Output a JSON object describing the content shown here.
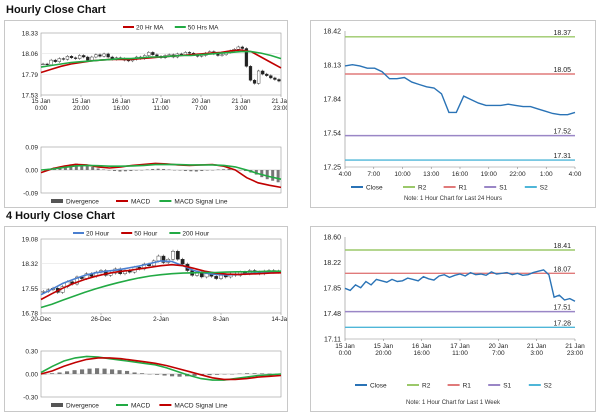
{
  "sections": [
    {
      "title": "Hourly Close Chart",
      "price": {
        "type": "line",
        "ylim": [
          17.53,
          18.33
        ],
        "yticks": [
          "18.33",
          "18.06",
          "17.79",
          "17.53"
        ],
        "xticks": [
          [
            "15 Jan",
            "0:00"
          ],
          [
            "15 Jan",
            "20:00"
          ],
          [
            "16 Jan",
            "16:00"
          ],
          [
            "17 Jan",
            "11:00"
          ],
          [
            "20 Jan",
            "7:00"
          ],
          [
            "21 Jan",
            "3:00"
          ],
          [
            "21 Jan",
            "23:00"
          ]
        ],
        "legend": [
          {
            "name": "20 Hr MA",
            "color": "#c00000"
          },
          {
            "name": "50 Hrs MA",
            "color": "#22aa44"
          }
        ],
        "candles": [
          17.93,
          17.92,
          17.98,
          17.96,
          18.0,
          17.99,
          18.03,
          18.01,
          18.0,
          18.04,
          18.02,
          17.98,
          18.02,
          18.05,
          18.03,
          18.06,
          18.02,
          17.99,
          18.01,
          18.0,
          17.98,
          17.97,
          17.99,
          18.02,
          18.0,
          18.04,
          18.08,
          18.05,
          18.03,
          18.01,
          18.04,
          18.05,
          18.02,
          18.06,
          18.05,
          18.08,
          18.07,
          18.05,
          18.03,
          18.04,
          18.07,
          18.09,
          18.06,
          18.04,
          18.05,
          18.08,
          18.1,
          18.12,
          18.15,
          18.13,
          17.9,
          17.72,
          17.68,
          17.84,
          17.8,
          17.78,
          17.75,
          17.73,
          17.71
        ],
        "series": [
          {
            "name": "20 Hr MA",
            "color": "#c00000",
            "values": [
              17.82,
              17.86,
              17.9,
              17.93,
              17.95,
              17.97,
              17.98,
              17.99,
              17.99,
              17.99,
              18.0,
              18.01,
              18.02,
              18.03,
              18.04,
              18.05,
              18.06,
              18.07,
              18.08,
              18.1,
              18.11,
              18.09,
              18.02,
              17.95,
              17.88
            ]
          },
          {
            "name": "50 Hrs MA",
            "color": "#22aa44",
            "values": [
              17.89,
              17.91,
              17.93,
              17.95,
              17.96,
              17.97,
              17.98,
              17.99,
              18.0,
              18.0,
              18.01,
              18.02,
              18.02,
              18.03,
              18.04,
              18.04,
              18.05,
              18.06,
              18.07,
              18.08,
              18.09,
              18.09,
              18.07,
              18.04,
              18.0
            ]
          }
        ]
      },
      "macd": {
        "type": "line",
        "ylim": [
          -0.09,
          0.09
        ],
        "yticks": [
          "0.09",
          "0.00",
          "-0.09"
        ],
        "legend": [
          {
            "name": "Divergence",
            "color": "#555555"
          },
          {
            "name": "MACD",
            "color": "#c00000"
          },
          {
            "name": "MACD Signal Line",
            "color": "#22aa44"
          }
        ],
        "histogram": [
          0.0,
          0.005,
          0.01,
          0.014,
          0.018,
          0.022,
          0.025,
          0.022,
          0.018,
          0.012,
          0.006,
          0.002,
          -0.002,
          -0.004,
          -0.006,
          -0.005,
          -0.004,
          -0.002,
          0.0,
          0.002,
          0.004,
          0.005,
          0.004,
          0.002,
          0.0,
          -0.002,
          -0.004,
          -0.005,
          -0.006,
          -0.004,
          -0.002,
          0.0,
          0.002,
          0.003,
          0.004,
          0.002,
          0.0,
          -0.004,
          -0.01,
          -0.018,
          -0.028,
          -0.036,
          -0.042,
          -0.048
        ],
        "series": [
          {
            "name": "MACD",
            "color": "#c00000",
            "values": [
              -0.01,
              0.005,
              0.015,
              0.022,
              0.02,
              0.012,
              0.008,
              0.012,
              0.018,
              0.022,
              0.026,
              0.024,
              0.02,
              0.018,
              0.02,
              0.021,
              0.015,
              0.0,
              -0.03,
              -0.05,
              -0.06,
              -0.068
            ]
          },
          {
            "name": "MACD Signal Line",
            "color": "#22aa44",
            "values": [
              0.0,
              0.004,
              0.01,
              0.016,
              0.018,
              0.017,
              0.015,
              0.015,
              0.016,
              0.018,
              0.021,
              0.022,
              0.021,
              0.02,
              0.02,
              0.02,
              0.018,
              0.012,
              0.0,
              -0.014,
              -0.026,
              -0.036
            ]
          }
        ]
      },
      "levels": {
        "type": "line",
        "ylim": [
          17.25,
          18.42
        ],
        "yticks": [
          "18.42",
          "18.13",
          "17.84",
          "17.54",
          "17.25"
        ],
        "xticks": [
          "4:00",
          "7:00",
          "10:00",
          "13:00",
          "16:00",
          "19:00",
          "22:00",
          "1:00",
          "4:00"
        ],
        "lines": [
          {
            "name": "R2",
            "value": 18.37,
            "label": "18.37",
            "color": "#9bc86a"
          },
          {
            "name": "R1",
            "value": 18.05,
            "label": "18.05",
            "color": "#e07a7a"
          },
          {
            "name": "S1",
            "value": 17.52,
            "label": "17.52",
            "color": "#9a86c6"
          },
          {
            "name": "S2",
            "value": 17.31,
            "label": "17.31",
            "color": "#4fb6d8"
          }
        ],
        "close": {
          "name": "Close",
          "color": "#2a73b6",
          "values": [
            18.12,
            18.13,
            18.12,
            18.1,
            18.1,
            18.07,
            18.01,
            18.01,
            18.02,
            17.98,
            17.96,
            17.94,
            17.93,
            17.88,
            17.72,
            17.72,
            17.86,
            17.83,
            17.8,
            17.78,
            17.78,
            17.78,
            17.79,
            17.78,
            17.77,
            17.77,
            17.75,
            17.73,
            17.71,
            17.7,
            17.7,
            17.72
          ]
        },
        "legend": [
          {
            "name": "Close",
            "color": "#2a73b6"
          },
          {
            "name": "R2",
            "color": "#9bc86a"
          },
          {
            "name": "R1",
            "color": "#e07a7a"
          },
          {
            "name": "S1",
            "color": "#9a86c6"
          },
          {
            "name": "S2",
            "color": "#4fb6d8"
          }
        ],
        "note": "Note: 1 Hour Chart for Last 24 Hours"
      }
    },
    {
      "title": "4 Hourly Close Chart",
      "price": {
        "type": "line",
        "ylim": [
          16.78,
          19.08
        ],
        "yticks": [
          "19.08",
          "18.32",
          "17.55",
          "16.78"
        ],
        "xticks": [
          [
            "20-Dec",
            ""
          ],
          [
            "26-Dec",
            ""
          ],
          [
            "2-Jan",
            ""
          ],
          [
            "8-Jan",
            ""
          ],
          [
            "14-Jan",
            ""
          ]
        ],
        "legend": [
          {
            "name": "20 Hour",
            "color": "#4a7fd0"
          },
          {
            "name": "50 Hour",
            "color": "#c00000"
          },
          {
            "name": "200 Hour",
            "color": "#22aa44"
          }
        ],
        "candles": [
          17.45,
          17.5,
          17.55,
          17.42,
          17.6,
          17.75,
          17.68,
          17.9,
          17.85,
          18.0,
          17.92,
          18.05,
          18.1,
          17.95,
          18.02,
          18.15,
          18.0,
          18.1,
          18.05,
          18.2,
          18.15,
          18.3,
          18.25,
          18.4,
          18.55,
          18.35,
          18.45,
          18.7,
          18.45,
          18.3,
          18.1,
          17.95,
          18.05,
          17.9,
          18.0,
          17.92,
          17.85,
          17.95,
          17.9,
          18.0,
          17.95,
          18.05,
          18.0,
          18.1,
          18.05,
          18.0,
          18.08,
          18.1,
          18.05,
          18.08
        ],
        "series": [
          {
            "name": "20 Hour",
            "color": "#4a7fd0",
            "values": [
              17.35,
              17.52,
              17.7,
              17.83,
              17.95,
              18.03,
              18.08,
              18.12,
              18.18,
              18.24,
              18.32,
              18.4,
              18.38,
              18.25,
              18.1,
              18.02,
              17.98,
              17.96,
              17.98,
              18.0,
              18.02,
              18.04,
              18.05
            ]
          },
          {
            "name": "50 Hour",
            "color": "#c00000",
            "values": [
              17.2,
              17.38,
              17.55,
              17.7,
              17.82,
              17.92,
              18.0,
              18.06,
              18.1,
              18.15,
              18.2,
              18.25,
              18.28,
              18.25,
              18.17,
              18.08,
              18.02,
              17.99,
              17.98,
              17.99,
              18.0,
              18.02,
              18.03
            ]
          },
          {
            "name": "200 Hour",
            "color": "#22aa44",
            "values": [
              16.95,
              17.05,
              17.18,
              17.3,
              17.42,
              17.53,
              17.63,
              17.72,
              17.8,
              17.87,
              17.93,
              17.97,
              18.0,
              18.02,
              18.03,
              18.04,
              18.04,
              18.05,
              18.06,
              18.06,
              18.07,
              18.08,
              18.08
            ]
          }
        ]
      },
      "macd": {
        "type": "line",
        "ylim": [
          -0.3,
          0.3
        ],
        "yticks": [
          "0.30",
          "0.00",
          "-0.30"
        ],
        "legend": [
          {
            "name": "Divergence",
            "color": "#555555"
          },
          {
            "name": "MACD",
            "color": "#22aa44"
          },
          {
            "name": "MACD Signal Line",
            "color": "#c00000"
          }
        ],
        "histogram": [
          0.0,
          0.01,
          0.02,
          0.035,
          0.05,
          0.06,
          0.07,
          0.075,
          0.07,
          0.06,
          0.05,
          0.04,
          0.02,
          0.01,
          0.0,
          -0.01,
          -0.02,
          -0.03,
          -0.035,
          -0.03,
          -0.025,
          -0.02,
          -0.015,
          -0.01,
          -0.005,
          0.0,
          0.005,
          0.01,
          0.01,
          0.008,
          0.006,
          0.005
        ],
        "series": [
          {
            "name": "MACD",
            "color": "#22aa44",
            "values": [
              0.02,
              0.1,
              0.17,
              0.21,
              0.23,
              0.22,
              0.2,
              0.18,
              0.16,
              0.14,
              0.12,
              0.08,
              0.03,
              -0.02,
              -0.06,
              -0.08,
              -0.08,
              -0.06,
              -0.04,
              -0.02,
              -0.01,
              0.0
            ]
          },
          {
            "name": "MACD Signal Line",
            "color": "#c00000",
            "values": [
              0.0,
              0.04,
              0.1,
              0.15,
              0.19,
              0.21,
              0.21,
              0.2,
              0.18,
              0.16,
              0.14,
              0.11,
              0.07,
              0.03,
              -0.01,
              -0.05,
              -0.07,
              -0.07,
              -0.06,
              -0.04,
              -0.03,
              -0.02
            ]
          }
        ]
      },
      "levels": {
        "type": "line",
        "ylim": [
          17.11,
          18.6
        ],
        "yticks": [
          "18.60",
          "18.22",
          "17.85",
          "17.48",
          "17.11"
        ],
        "xticks": [
          [
            "15 Jan",
            "0:00"
          ],
          [
            "15 Jan",
            "20:00"
          ],
          [
            "16 Jan",
            "16:00"
          ],
          [
            "17 Jan",
            "11:00"
          ],
          [
            "20 Jan",
            "7:00"
          ],
          [
            "21 Jan",
            "3:00"
          ],
          [
            "21 Jan",
            "23:00"
          ]
        ],
        "lines": [
          {
            "name": "R2",
            "value": 18.41,
            "label": "18.41",
            "color": "#9bc86a"
          },
          {
            "name": "R1",
            "value": 18.07,
            "label": "18.07",
            "color": "#e07a7a"
          },
          {
            "name": "S1",
            "value": 17.51,
            "label": "17.51",
            "color": "#9a86c6"
          },
          {
            "name": "S2",
            "value": 17.28,
            "label": "17.28",
            "color": "#4fb6d8"
          }
        ],
        "close": {
          "name": "Close",
          "color": "#2a73b6",
          "values": [
            17.85,
            17.82,
            17.9,
            17.86,
            17.95,
            17.9,
            17.98,
            17.96,
            17.94,
            17.98,
            17.95,
            17.96,
            18.0,
            17.98,
            17.96,
            18.02,
            17.99,
            17.97,
            18.03,
            18.05,
            18.01,
            18.04,
            18.06,
            18.03,
            18.08,
            18.05,
            18.06,
            18.04,
            18.09,
            18.06,
            18.07,
            18.08,
            18.05,
            18.07,
            18.04,
            18.05,
            18.08,
            18.1,
            18.12,
            18.05,
            17.72,
            17.75,
            17.68,
            17.7,
            17.66
          ]
        },
        "legend": [
          {
            "name": "Close",
            "color": "#2a73b6"
          },
          {
            "name": "R2",
            "color": "#9bc86a"
          },
          {
            "name": "R1",
            "color": "#e07a7a"
          },
          {
            "name": "S1",
            "color": "#9a86c6"
          },
          {
            "name": "S2",
            "color": "#4fb6d8"
          }
        ],
        "note": "Note: 1 Hour Chart for Last 1 Week"
      }
    }
  ]
}
